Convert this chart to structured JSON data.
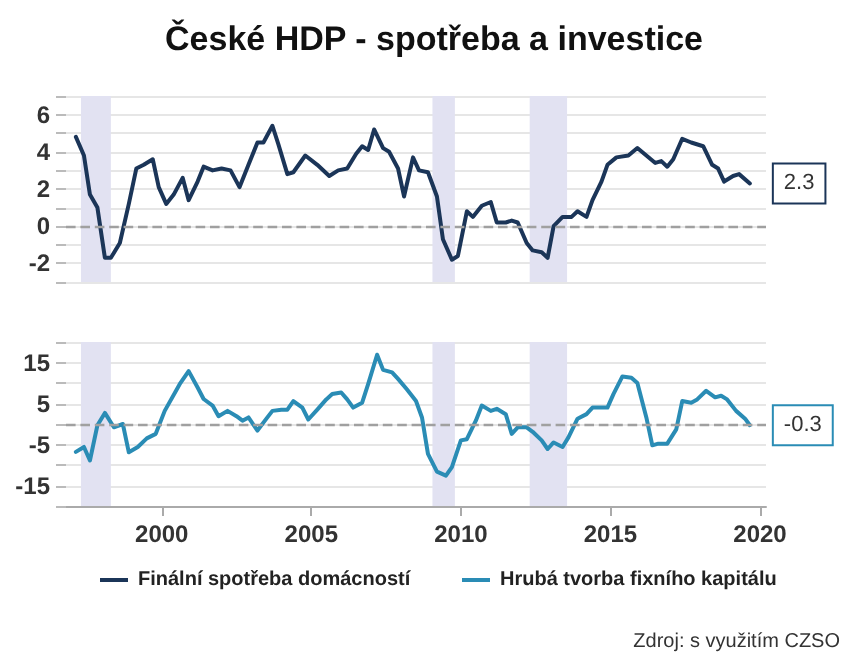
{
  "chart_data": [
    {
      "type": "line",
      "title": "České HDP - spotřeba a investice",
      "xlim": [
        1996.8,
        2020.2
      ],
      "xticks": [
        2000,
        2005,
        2010,
        2015,
        2020
      ],
      "ylim": [
        -3,
        7
      ],
      "yticks": [
        {
          "value": -3,
          "label": null
        },
        -2,
        {
          "value": -1,
          "label": null
        },
        0,
        {
          "value": 1,
          "label": null
        },
        2,
        {
          "value": 3,
          "label": null
        },
        4,
        {
          "value": 5,
          "label": null
        },
        6,
        {
          "value": 7,
          "label": null
        }
      ],
      "grid": "y",
      "legend": "bottom",
      "tick_labels": "y",
      "marker": "none",
      "ref_lines": [
        {
          "axis": "y",
          "value": 0,
          "color": "#a0a0a0",
          "line_style": "dashed"
        }
      ],
      "bands": [
        {
          "axis": "x",
          "from": 1997.3,
          "to": 1998.3,
          "color": "#e2e2f2"
        },
        {
          "axis": "x",
          "from": 2009.05,
          "to": 2009.8,
          "color": "#e2e2f2"
        },
        {
          "axis": "x",
          "from": 2012.3,
          "to": 2013.55,
          "color": "#e2e2f2"
        }
      ],
      "series": [
        {
          "name": "Finální spotřeba domácností",
          "color": "#1b3558",
          "x": [
            1997.13,
            1997.4,
            1997.6,
            1997.85,
            1998.1,
            1998.3,
            1998.6,
            1998.9,
            1999.15,
            1999.4,
            1999.7,
            1999.9,
            2000.15,
            2000.4,
            2000.7,
            2000.9,
            2001.2,
            2001.4,
            2001.7,
            2002.0,
            2002.3,
            2002.6,
            2002.9,
            2003.2,
            2003.4,
            2003.7,
            2003.9,
            2004.2,
            2004.4,
            2004.8,
            2005.2,
            2005.6,
            2005.9,
            2006.2,
            2006.5,
            2006.7,
            2006.9,
            2007.1,
            2007.4,
            2007.6,
            2007.9,
            2008.1,
            2008.4,
            2008.6,
            2008.9,
            2009.2,
            2009.4,
            2009.7,
            2009.9,
            2010.2,
            2010.4,
            2010.7,
            2011.0,
            2011.2,
            2011.5,
            2011.7,
            2011.9,
            2012.2,
            2012.4,
            2012.7,
            2012.9,
            2013.1,
            2013.4,
            2013.7,
            2013.9,
            2014.2,
            2014.4,
            2014.7,
            2014.9,
            2015.2,
            2015.6,
            2015.9,
            2016.2,
            2016.5,
            2016.7,
            2016.9,
            2017.1,
            2017.4,
            2017.7,
            2018.1,
            2018.4,
            2018.6,
            2018.8,
            2019.1,
            2019.3,
            2019.66
          ],
          "values": [
            4.8,
            3.8,
            1.7,
            1.0,
            -1.7,
            -1.7,
            -0.9,
            1.2,
            3.1,
            3.3,
            3.6,
            2.1,
            1.2,
            1.7,
            2.6,
            1.4,
            2.4,
            3.2,
            3.0,
            3.1,
            3.0,
            2.1,
            3.3,
            4.5,
            4.5,
            5.4,
            4.4,
            2.8,
            2.9,
            3.8,
            3.3,
            2.7,
            3.0,
            3.1,
            3.9,
            4.3,
            4.1,
            5.2,
            4.2,
            4.0,
            3.1,
            1.6,
            3.7,
            3.0,
            2.9,
            1.6,
            -0.7,
            -1.8,
            -1.6,
            0.8,
            0.5,
            1.1,
            1.3,
            0.2,
            0.2,
            0.3,
            0.2,
            -0.9,
            -1.3,
            -1.4,
            -1.7,
            0.0,
            0.5,
            0.5,
            0.8,
            0.5,
            1.4,
            2.4,
            3.3,
            3.7,
            3.8,
            4.2,
            3.8,
            3.4,
            3.5,
            3.2,
            3.6,
            4.7,
            4.5,
            4.3,
            3.3,
            3.1,
            2.4,
            2.7,
            2.8,
            2.3
          ],
          "value_labels": [
            null,
            null,
            null,
            null,
            null,
            null,
            null,
            null,
            null,
            null,
            null,
            null,
            null,
            null,
            null,
            null,
            null,
            null,
            null,
            null,
            null,
            null,
            null,
            null,
            null,
            null,
            null,
            null,
            null,
            null,
            null,
            null,
            null,
            null,
            null,
            null,
            null,
            null,
            null,
            null,
            null,
            null,
            null,
            null,
            null,
            null,
            null,
            null,
            null,
            null,
            null,
            null,
            null,
            null,
            null,
            null,
            null,
            null,
            null,
            null,
            null,
            null,
            null,
            null,
            null,
            null,
            null,
            null,
            null,
            null,
            null,
            null,
            null,
            null,
            null,
            null,
            null,
            null,
            null,
            null,
            null,
            null,
            null,
            null,
            null,
            "2.3"
          ]
        }
      ]
    },
    {
      "type": "line",
      "xlim": [
        1996.8,
        2020.2
      ],
      "xticks": [
        2000,
        2005,
        2010,
        2015,
        2020
      ],
      "ylim": [
        -20,
        20
      ],
      "yticks": [
        {
          "value": -20,
          "label": null
        },
        -15,
        {
          "value": -10,
          "label": null
        },
        -5,
        {
          "value": 0,
          "label": null
        },
        5,
        {
          "value": 10,
          "label": null
        },
        15,
        {
          "value": 20,
          "label": null
        }
      ],
      "grid": "y",
      "legend": "bottom",
      "marker": "none",
      "annotations": [
        "Zdroj: s využitím CZSO"
      ],
      "ref_lines": [
        {
          "axis": "y",
          "value": 0,
          "color": "#a0a0a0",
          "line_style": "dashed"
        }
      ],
      "bands": [
        {
          "axis": "x",
          "from": 1997.3,
          "to": 1998.3,
          "color": "#e2e2f2"
        },
        {
          "axis": "x",
          "from": 2009.05,
          "to": 2009.8,
          "color": "#e2e2f2"
        },
        {
          "axis": "x",
          "from": 2012.3,
          "to": 2013.55,
          "color": "#e2e2f2"
        }
      ],
      "series": [
        {
          "name": "Hrubá tvorba fixního kapitálu",
          "color": "#2a8cb5",
          "x": [
            1997.13,
            1997.4,
            1997.6,
            1997.85,
            1998.1,
            1998.4,
            1998.7,
            1998.9,
            1999.2,
            1999.5,
            1999.8,
            2000.1,
            2000.6,
            2000.9,
            2001.2,
            2001.4,
            2001.7,
            2001.9,
            2002.2,
            2002.5,
            2002.7,
            2002.9,
            2003.2,
            2003.5,
            2003.7,
            2004.0,
            2004.2,
            2004.4,
            2004.7,
            2004.9,
            2005.2,
            2005.5,
            2005.7,
            2006.0,
            2006.2,
            2006.4,
            2006.7,
            2006.9,
            2007.2,
            2007.4,
            2007.7,
            2007.9,
            2008.2,
            2008.5,
            2008.7,
            2008.9,
            2009.2,
            2009.5,
            2009.7,
            2010.0,
            2010.2,
            2010.5,
            2010.7,
            2011.0,
            2011.2,
            2011.5,
            2011.7,
            2011.9,
            2012.2,
            2012.4,
            2012.7,
            2012.9,
            2013.1,
            2013.4,
            2013.6,
            2013.9,
            2014.2,
            2014.4,
            2014.6,
            2014.9,
            2015.1,
            2015.4,
            2015.7,
            2015.9,
            2016.2,
            2016.4,
            2016.6,
            2016.9,
            2017.2,
            2017.4,
            2017.7,
            2017.9,
            2018.2,
            2018.5,
            2018.7,
            2018.9,
            2019.2,
            2019.5,
            2019.66
          ],
          "values": [
            -6.8,
            -5.6,
            -8.9,
            -0.3,
            2.7,
            -0.8,
            0,
            -6.9,
            -5.6,
            -3.5,
            -2.4,
            3.2,
            9.7,
            12.9,
            8.9,
            6.1,
            4.5,
            1.9,
            3.2,
            1.9,
            0.8,
            1.6,
            -1.6,
            1.3,
            3.2,
            3.5,
            3.5,
            5.6,
            4.0,
            1.1,
            3.5,
            6.0,
            7.3,
            7.7,
            6.0,
            4.0,
            5.2,
            9.7,
            16.9,
            13.2,
            12.6,
            11.0,
            8.4,
            5.6,
            1.6,
            -7.3,
            -11.6,
            -12.6,
            -10.5,
            -4.0,
            -3.7,
            0.8,
            4.5,
            3.2,
            3.7,
            2.4,
            -2.4,
            -0.8,
            -0.8,
            -1.9,
            -4.0,
            -6.1,
            -4.5,
            -5.6,
            -3.2,
            1.3,
            2.4,
            4.0,
            4.0,
            4.0,
            7.3,
            11.6,
            11.3,
            10.0,
            1.6,
            -5.2,
            -4.8,
            -4.8,
            -1.3,
            5.6,
            5.2,
            6.0,
            8.1,
            6.5,
            6.9,
            6.0,
            3.2,
            1.3,
            -0.3
          ],
          "value_labels": [
            null,
            null,
            null,
            null,
            null,
            null,
            null,
            null,
            null,
            null,
            null,
            null,
            null,
            null,
            null,
            null,
            null,
            null,
            null,
            null,
            null,
            null,
            null,
            null,
            null,
            null,
            null,
            null,
            null,
            null,
            null,
            null,
            null,
            null,
            null,
            null,
            null,
            null,
            null,
            null,
            null,
            null,
            null,
            null,
            null,
            null,
            null,
            null,
            null,
            null,
            null,
            null,
            null,
            null,
            null,
            null,
            null,
            null,
            null,
            null,
            null,
            null,
            null,
            null,
            null,
            null,
            null,
            null,
            null,
            null,
            null,
            null,
            null,
            null,
            null,
            null,
            null,
            null,
            null,
            null,
            null,
            null,
            null,
            null,
            null,
            null,
            null,
            null,
            "-0.3"
          ]
        }
      ]
    }
  ]
}
